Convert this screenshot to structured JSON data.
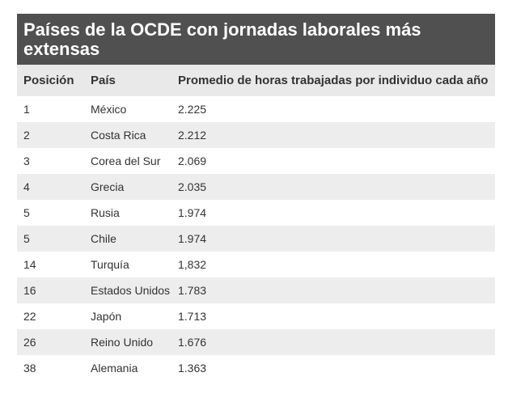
{
  "chart_data": {
    "type": "table",
    "title": "Países de la OCDE con jornadas laborales más extensas",
    "columns": [
      "Posición",
      "País",
      "Promedio de horas trabajadas por individuo cada año"
    ],
    "rows": [
      [
        "1",
        "México",
        "2.225"
      ],
      [
        "2",
        "Costa Rica",
        "2.212"
      ],
      [
        "3",
        "Corea del Sur",
        "2.069"
      ],
      [
        "4",
        "Grecia",
        "2.035"
      ],
      [
        "5",
        "Rusia",
        "1.974"
      ],
      [
        "5",
        "Chile",
        "1.974"
      ],
      [
        "14",
        "Turquía",
        "1,832"
      ],
      [
        "16",
        "Estados Unidos",
        "1.783"
      ],
      [
        "22",
        "Japón",
        "1.713"
      ],
      [
        "26",
        "Reino Unido",
        "1.676"
      ],
      [
        "38",
        "Alemania",
        "1.363"
      ]
    ]
  }
}
